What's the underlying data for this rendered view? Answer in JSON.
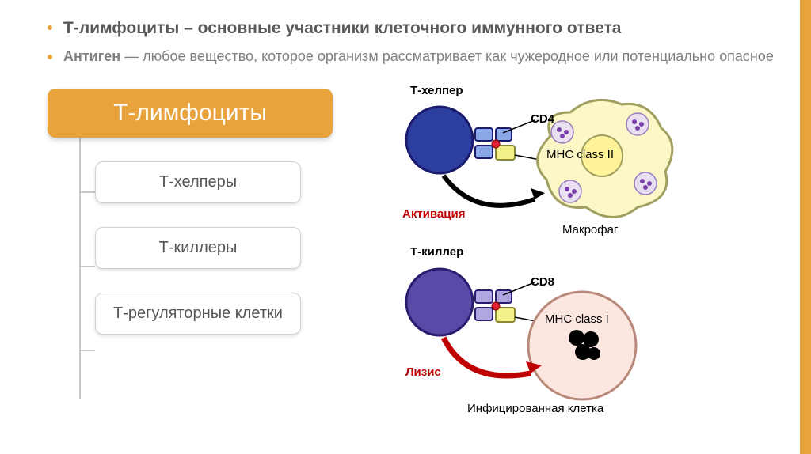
{
  "accent_color": "#e8a33d",
  "bullets": {
    "dot_color": "#e8a33d",
    "line1": "Т-лимфоциты – основные участники клеточного иммунного ответа",
    "line2_lead": "Антиген",
    "line2_rest": " — любое вещество, которое организм рассматривает как чужеродное или потенциально опасное"
  },
  "tree": {
    "root_bg": "#e8a33d",
    "root_label": "Т-лимфоциты",
    "nodes": [
      "Т-хелперы",
      "Т-киллеры",
      "Т-регуляторные клетки"
    ]
  },
  "diagram": {
    "top": {
      "title": "Т-хелпер",
      "receptor": "CD4",
      "mhc": "MHC class II",
      "action": "Активация",
      "target": "Макрофаг",
      "tcell_color": "#2d3f9e",
      "tcell_border": "#1a1a6e",
      "target_fill": "#fbf7c7",
      "target_border": "#a0a060",
      "inner_fill": "#fff39a",
      "vesicle_fill": "#e9e0f2",
      "vesicle_dot": "#7a3fa8",
      "receptor_fill": "#8aa8e6",
      "receptor_border": "#1a1a6e",
      "mhc_fill": "#f4f08a",
      "antigen_fill": "#e02030",
      "arrow_color": "#000000"
    },
    "bottom": {
      "title": "Т-киллер",
      "receptor": "CD8",
      "mhc": "MHC class I",
      "action": "Лизис",
      "target": "Инфицированная клетка",
      "tcell_color": "#5a4aa8",
      "tcell_border": "#2b1a6e",
      "target_fill": "#fce6e0",
      "target_border": "#b88878",
      "receptor_fill": "#b0a6e0",
      "receptor_border": "#2b1a6e",
      "mhc_fill": "#f4f08a",
      "antigen_fill": "#e02030",
      "arrow_color": "#c00000",
      "pathogen_color": "#000000"
    }
  }
}
